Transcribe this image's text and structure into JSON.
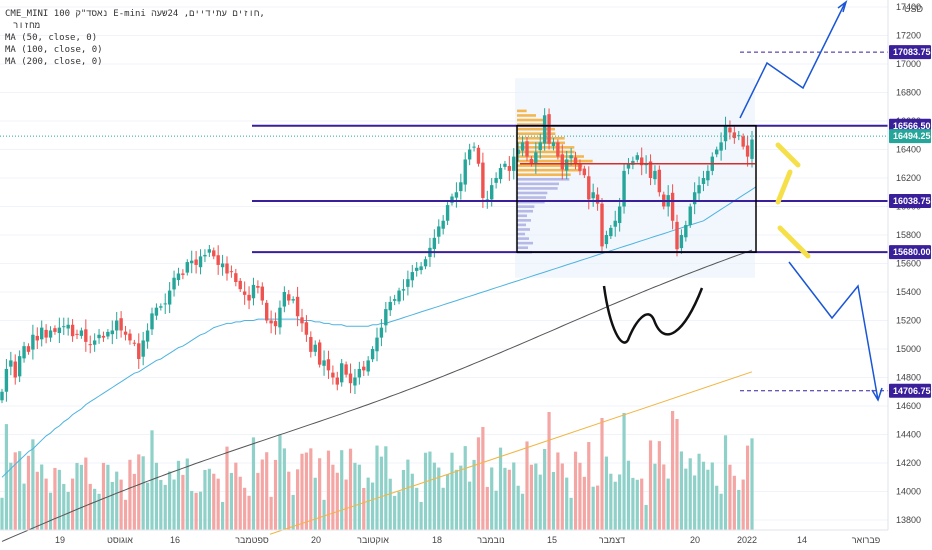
{
  "header": {
    "title_line": "CME_MINI נאסד\"ק 100 E-mini חוזים עתידיים, 24שעה,",
    "sub_line": "מחזור",
    "ma_lines": [
      "MA (50, close, 0)",
      "MA (100, close, 0)",
      "MA (200, close, 0)"
    ],
    "currency": "USD"
  },
  "colors": {
    "up": "#26a69a",
    "down": "#ef5350",
    "vol_up": "#8fd1c8",
    "vol_down": "#f3a6a4",
    "ma50": "#4fb3e0",
    "ma100": "#555555",
    "ma200": "#f2b441",
    "level": "#3a1f9a",
    "box": "#000000",
    "drawing_blue": "#1a56d6",
    "arrow_yellow": "#f5e04a",
    "red_line": "#d32f2f"
  },
  "chart_data": {
    "type": "candlestick",
    "symbol": "CME_MINI",
    "yaxis_ticks": [
      13800,
      14000,
      14200,
      14400,
      14600,
      14800,
      15000,
      15200,
      15400,
      15600,
      15800,
      16000,
      16200,
      16400,
      16600,
      16800,
      17000,
      17200,
      17400
    ],
    "ylim": [
      13700,
      17500
    ],
    "xaxis_ticks": [
      "19",
      "אוגוסט",
      "16",
      "ספטמבר",
      "20",
      "אוקטובר",
      "18",
      "נובמבר",
      "15",
      "דצמבר",
      "20",
      "2022",
      "14",
      "פברואר"
    ],
    "price_levels": [
      {
        "value": 17083.75,
        "label": "17083.75",
        "style": "dashed"
      },
      {
        "value": 16566.5,
        "label": "16566.50",
        "style": "solid"
      },
      {
        "value": 16494.25,
        "label": "16494.25",
        "style": "last"
      },
      {
        "value": 16038.75,
        "label": "16038.75",
        "style": "solid"
      },
      {
        "value": 15680.0,
        "label": "15680.00",
        "style": "solid"
      },
      {
        "value": 14706.75,
        "label": "14706.75",
        "style": "dashed"
      }
    ],
    "close": [
      14700,
      14860,
      14920,
      14800,
      14950,
      15020,
      14980,
      15100,
      15060,
      15150,
      15080,
      15130,
      15120,
      15150,
      15160,
      15170,
      15090,
      15100,
      15130,
      15050,
      15030,
      15060,
      15100,
      15080,
      15120,
      15130,
      15200,
      15130,
      15100,
      15060,
      15040,
      14930,
      15060,
      15130,
      15250,
      15290,
      15300,
      15320,
      15410,
      15500,
      15530,
      15520,
      15610,
      15620,
      15590,
      15650,
      15660,
      15700,
      15650,
      15590,
      15600,
      15530,
      15540,
      15470,
      15420,
      15380,
      15340,
      15450,
      15430,
      15340,
      15200,
      15180,
      15160,
      15290,
      15400,
      15340,
      15350,
      15230,
      15180,
      15100,
      14980,
      15030,
      14890,
      14920,
      14850,
      14800,
      14750,
      14900,
      14820,
      14760,
      14800,
      14860,
      14850,
      14920,
      15000,
      15080,
      15150,
      15280,
      15330,
      15350,
      15410,
      15420,
      15490,
      15540,
      15570,
      15580,
      15630,
      15710,
      15780,
      15860,
      15900,
      16010,
      16070,
      16100,
      16170,
      16330,
      16400,
      16420,
      16300,
      16060,
      16050,
      16150,
      16200,
      16270,
      16300,
      16250,
      16350,
      16400,
      16450,
      16350,
      16300,
      16380,
      16450,
      16640,
      16440,
      16450,
      16350,
      16260,
      16330,
      16360,
      16300,
      16250,
      16220,
      16050,
      16100,
      16020,
      15720,
      15800,
      15850,
      15900,
      16000,
      16250,
      16300,
      16320,
      16360,
      16290,
      16300,
      16200,
      16250,
      16100,
      16000,
      16080,
      15900,
      15700,
      15800,
      15870,
      16000,
      16100,
      16150,
      16200,
      16250,
      16350,
      16400,
      16450,
      16570,
      16520,
      16480,
      16500,
      16420,
      16350,
      16470
    ],
    "ma50": [
      14100,
      14130,
      14160,
      14190,
      14220,
      14250,
      14280,
      14300,
      14330,
      14360,
      14390,
      14410,
      14440,
      14460,
      14490,
      14510,
      14540,
      14560,
      14580,
      14610,
      14630,
      14650,
      14670,
      14690,
      14710,
      14730,
      14750,
      14770,
      14790,
      14810,
      14830,
      14840,
      14860,
      14880,
      14900,
      14920,
      14930,
      14950,
      14970,
      14990,
      15010,
      15020,
      15040,
      15060,
      15080,
      15100,
      15110,
      15130,
      15150,
      15160,
      15170,
      15180,
      15180,
      15190,
      15190,
      15200,
      15200,
      15200,
      15210,
      15210,
      15210,
      15210,
      15210,
      15210,
      15210,
      15210,
      15210,
      15210,
      15200,
      15200,
      15200,
      15190,
      15190,
      15180,
      15180,
      15170,
      15170,
      15170,
      15160,
      15160,
      15160,
      15160,
      15160,
      15160,
      15170,
      15170,
      15180,
      15180,
      15190,
      15200,
      15210,
      15220,
      15230,
      15240,
      15250,
      15260,
      15270,
      15280,
      15290,
      15300,
      15310,
      15320,
      15330,
      15340,
      15350,
      15360,
      15370,
      15380,
      15390,
      15400,
      15410,
      15420,
      15430,
      15440,
      15450,
      15460,
      15470,
      15480,
      15490,
      15500,
      15510,
      15520,
      15530,
      15540,
      15550,
      15560,
      15570,
      15580,
      15590,
      15600,
      15610,
      15620,
      15630,
      15640,
      15650,
      15660,
      15670,
      15680,
      15690,
      15700,
      15710,
      15720,
      15730,
      15740,
      15750,
      15760,
      15770,
      15780,
      15790,
      15800,
      15810,
      15820,
      15830,
      15840,
      15850,
      15860,
      15870,
      15880,
      15890,
      15900,
      15920,
      15940,
      15960,
      15980,
      16000,
      16020,
      16040,
      16060,
      16080,
      16100,
      16120,
      16140
    ]
  },
  "volume_axis": {
    "note": ""
  },
  "drawings": {
    "w_pattern": true,
    "box": {
      "top": 16566.5,
      "bottom": 15680.0
    }
  }
}
